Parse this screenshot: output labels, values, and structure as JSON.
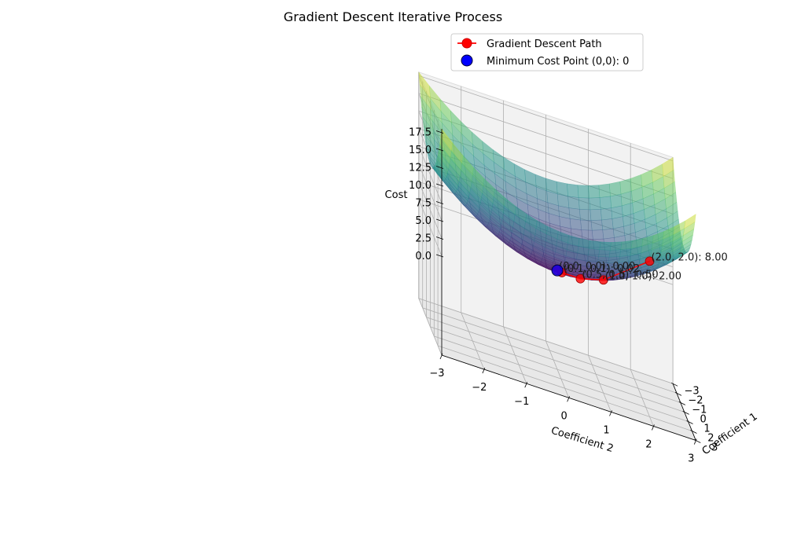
{
  "chart_data": {
    "type": "surface3d",
    "title": "Gradient Descent Iterative Process",
    "xlabel": "Coefficient 1",
    "ylabel": "Coefficient 2",
    "zlabel": "Cost",
    "xlim": [
      -3,
      3
    ],
    "ylim": [
      -3,
      3
    ],
    "zlim": [
      0,
      18
    ],
    "x_ticks": [
      -3,
      -2,
      -1,
      0,
      1,
      2,
      3
    ],
    "y_ticks": [
      -3,
      -2,
      -1,
      0,
      1,
      2,
      3
    ],
    "z_ticks": [
      "0.0",
      "2.5",
      "5.0",
      "7.5",
      "10.0",
      "12.5",
      "15.0",
      "17.5"
    ],
    "x_tick_labels": [
      "−3",
      "−2",
      "−1",
      "0",
      "1",
      "2",
      "3"
    ],
    "y_tick_labels": [
      "−3",
      "−2",
      "−1",
      "0",
      "1",
      "2",
      "3"
    ],
    "surface": {
      "function": "x^2 + y^2",
      "colormap": "viridis",
      "alpha": 0.5
    },
    "path": [
      {
        "x": 2.0,
        "y": 2.0,
        "cost": 8.0,
        "label": "(2.0, 2.0): 8.00"
      },
      {
        "x": 1.0,
        "y": 1.0,
        "cost": 2.0,
        "label": "(1.0, 1.0): 2.00"
      },
      {
        "x": 0.5,
        "y": 0.5,
        "cost": 0.5,
        "label": "(0.5, 0.5): 0.50"
      },
      {
        "x": 0.1,
        "y": 0.1,
        "cost": 0.02,
        "label": "(0.1, 0.1): 0.02"
      },
      {
        "x": 0.0,
        "y": 0.0,
        "cost": 0.0,
        "label": "(0.0, 0.0): 0.00"
      }
    ],
    "minimum": {
      "x": 0,
      "y": 0,
      "cost": 0
    },
    "legend": {
      "position": "upper-right",
      "entries": [
        {
          "label": "Gradient Descent Path",
          "color": "#ff0000",
          "marker": "line-circle"
        },
        {
          "label": "Minimum Cost Point (0,0): 0",
          "color": "#0000ff",
          "marker": "circle"
        }
      ]
    },
    "colors": {
      "path": "#ff0000",
      "minimum": "#0000ff",
      "pane": "#f2f2f2",
      "grid": "#b0b0b0"
    }
  }
}
